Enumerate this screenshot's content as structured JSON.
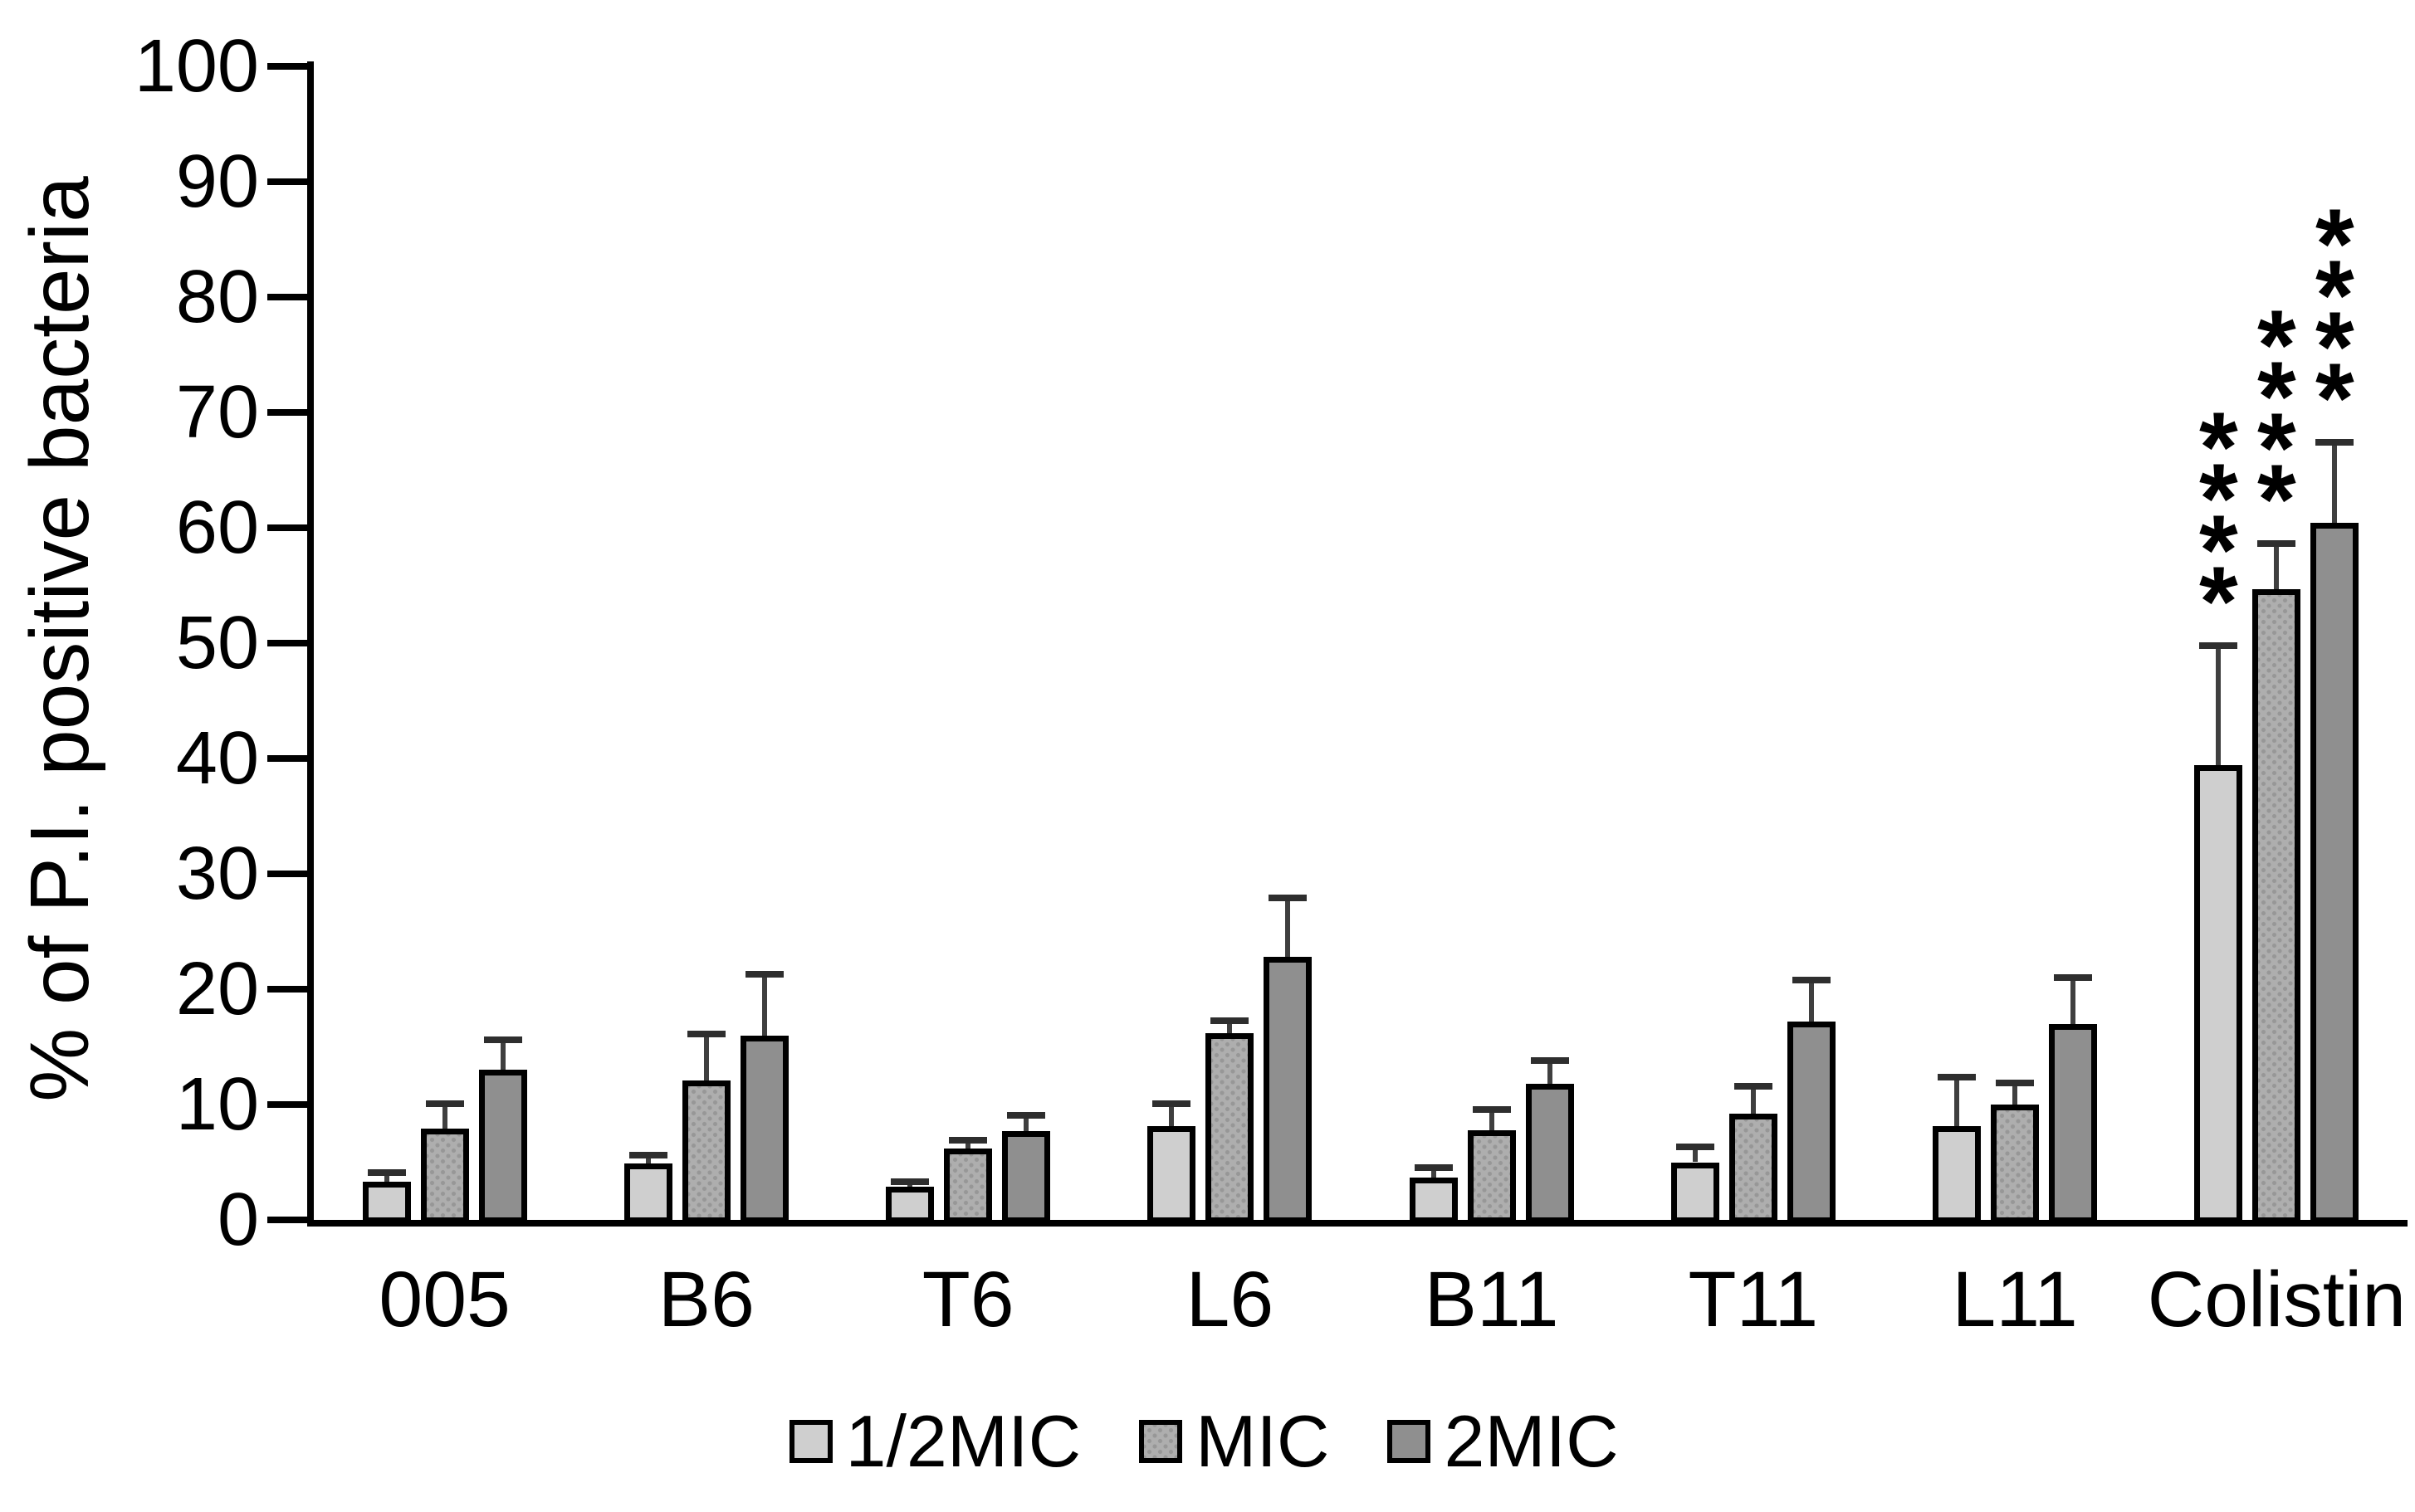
{
  "chart_data": {
    "type": "bar",
    "title": "",
    "xlabel": "",
    "ylabel": "% of P.I. positive bacteria",
    "ylim": [
      0,
      100
    ],
    "ytick_step": 10,
    "yticks": [
      0,
      10,
      20,
      30,
      40,
      50,
      60,
      70,
      80,
      90,
      100
    ],
    "grid": false,
    "legend_position": "bottom",
    "categories": [
      "005",
      "B6",
      "T6",
      "L6",
      "B11",
      "T11",
      "L11",
      "Colistin"
    ],
    "series": [
      {
        "name": "1/2MIC",
        "color": "#cfcfcf",
        "pattern": "solid",
        "values": [
          3.3,
          4.9,
          2.9,
          8.1,
          3.7,
          5.0,
          8.1,
          39.4
        ],
        "errors_plus": [
          0.8,
          0.7,
          0.4,
          2.0,
          0.8,
          1.3,
          4.3,
          10.4
        ]
      },
      {
        "name": "MIC",
        "color": "#aeaeae",
        "pattern": "dotted",
        "dot_color": "#979797",
        "values": [
          7.9,
          12.1,
          6.2,
          16.2,
          7.8,
          9.2,
          10.0,
          54.7
        ],
        "errors_plus": [
          2.2,
          4.0,
          0.7,
          1.1,
          1.8,
          2.4,
          1.9,
          3.9
        ]
      },
      {
        "name": "2MIC",
        "color": "#8f8f8f",
        "pattern": "solid",
        "values": [
          13.0,
          16.0,
          7.7,
          22.8,
          11.8,
          17.2,
          17.0,
          60.4
        ],
        "errors_plus": [
          2.6,
          5.3,
          1.4,
          5.1,
          2.0,
          3.6,
          4.0,
          7.0
        ]
      }
    ],
    "significance": {
      "category": "Colistin",
      "marks_per_series": [
        "****",
        "****",
        "****"
      ]
    },
    "bar_outline_color": "#000000",
    "error_bar_color": "#3f3f3f",
    "axis_color": "#000000"
  }
}
